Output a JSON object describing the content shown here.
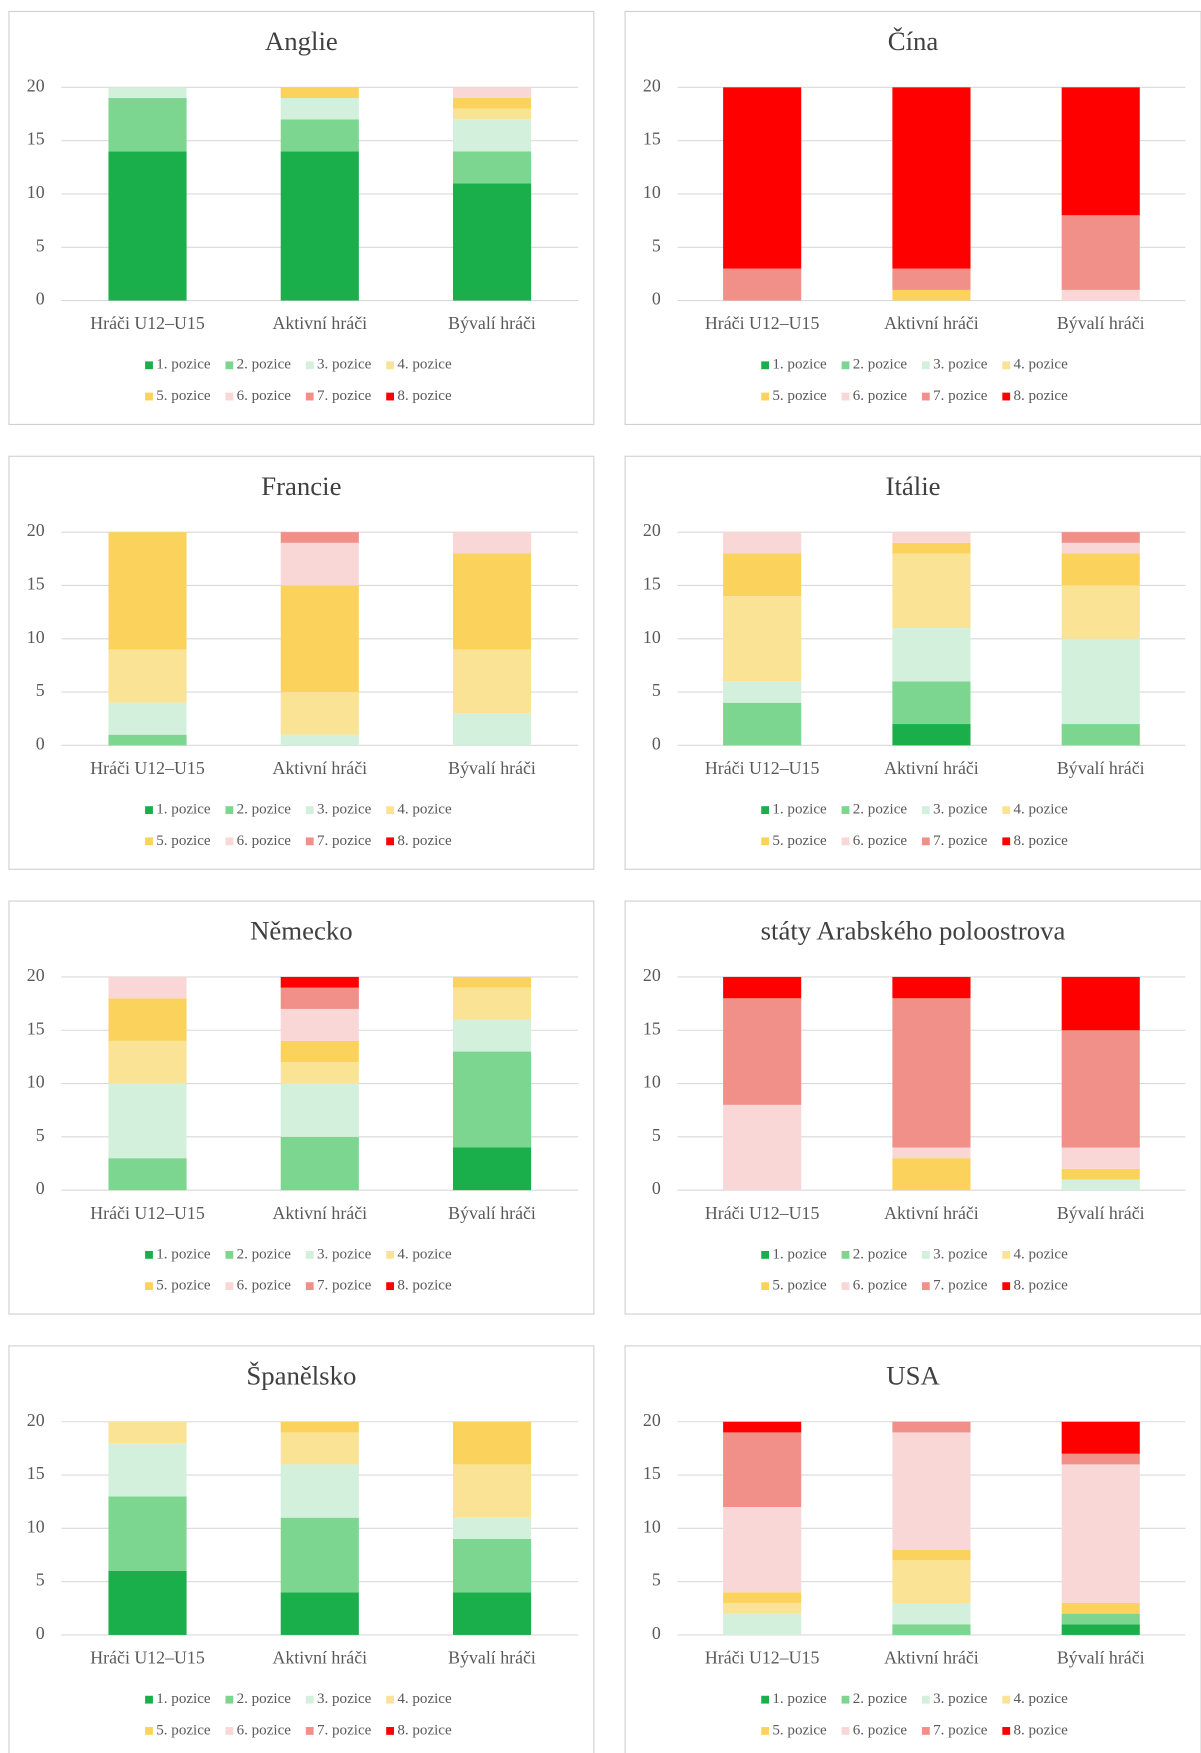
{
  "chart_data": [
    {
      "type": "bar",
      "stacked": true,
      "title": "Anglie",
      "categories": [
        "Hráči U12–U15",
        "Aktivní hráči",
        "Bývalí hráči"
      ],
      "ylim": [
        0,
        20
      ],
      "yticks": [
        0,
        5,
        10,
        15,
        20
      ],
      "grid": true,
      "legend": "bottom",
      "series": [
        {
          "name": "1. pozice",
          "color": "#1aaf4b",
          "values": [
            14,
            14,
            11
          ]
        },
        {
          "name": "2. pozice",
          "color": "#7dd68f",
          "values": [
            5,
            3,
            3
          ]
        },
        {
          "name": "3. pozice",
          "color": "#d3f0dc",
          "values": [
            1,
            2,
            3
          ]
        },
        {
          "name": "4. pozice",
          "color": "#fbe396",
          "values": [
            0,
            0,
            1
          ]
        },
        {
          "name": "5. pozice",
          "color": "#fbd35c",
          "values": [
            0,
            1,
            1
          ]
        },
        {
          "name": "6. pozice",
          "color": "#fad7d7",
          "values": [
            0,
            0,
            1
          ]
        },
        {
          "name": "7. pozice",
          "color": "#f09088",
          "values": [
            0,
            0,
            0
          ]
        },
        {
          "name": "8. pozice",
          "color": "#ff0000",
          "values": [
            0,
            0,
            0
          ]
        }
      ]
    },
    {
      "type": "bar",
      "stacked": true,
      "title": "Čína",
      "categories": [
        "Hráči U12–U15",
        "Aktivní hráči",
        "Bývalí hráči"
      ],
      "ylim": [
        0,
        20
      ],
      "yticks": [
        0,
        5,
        10,
        15,
        20
      ],
      "grid": true,
      "legend": "bottom",
      "series": [
        {
          "name": "1. pozice",
          "color": "#1aaf4b",
          "values": [
            0,
            0,
            0
          ]
        },
        {
          "name": "2. pozice",
          "color": "#7dd68f",
          "values": [
            0,
            0,
            0
          ]
        },
        {
          "name": "3. pozice",
          "color": "#d3f0dc",
          "values": [
            0,
            0,
            0
          ]
        },
        {
          "name": "4. pozice",
          "color": "#fbe396",
          "values": [
            0,
            0,
            0
          ]
        },
        {
          "name": "5. pozice",
          "color": "#fbd35c",
          "values": [
            0,
            1,
            0
          ]
        },
        {
          "name": "6. pozice",
          "color": "#fad7d7",
          "values": [
            0,
            0,
            1
          ]
        },
        {
          "name": "7. pozice",
          "color": "#f09088",
          "values": [
            3,
            2,
            7
          ]
        },
        {
          "name": "8. pozice",
          "color": "#ff0000",
          "values": [
            17,
            17,
            12
          ]
        }
      ]
    },
    {
      "type": "bar",
      "stacked": true,
      "title": "Francie",
      "categories": [
        "Hráči U12–U15",
        "Aktivní hráči",
        "Bývalí hráči"
      ],
      "ylim": [
        0,
        20
      ],
      "yticks": [
        0,
        5,
        10,
        15,
        20
      ],
      "grid": true,
      "legend": "bottom",
      "series": [
        {
          "name": "1. pozice",
          "color": "#1aaf4b",
          "values": [
            0,
            0,
            0
          ]
        },
        {
          "name": "2. pozice",
          "color": "#7dd68f",
          "values": [
            1,
            0,
            0
          ]
        },
        {
          "name": "3. pozice",
          "color": "#d3f0dc",
          "values": [
            3,
            1,
            3
          ]
        },
        {
          "name": "4. pozice",
          "color": "#fbe396",
          "values": [
            5,
            4,
            6
          ]
        },
        {
          "name": "5. pozice",
          "color": "#fbd35c",
          "values": [
            11,
            10,
            9
          ]
        },
        {
          "name": "6. pozice",
          "color": "#fad7d7",
          "values": [
            0,
            4,
            2
          ]
        },
        {
          "name": "7. pozice",
          "color": "#f09088",
          "values": [
            0,
            1,
            0
          ]
        },
        {
          "name": "8. pozice",
          "color": "#ff0000",
          "values": [
            0,
            0,
            0
          ]
        }
      ]
    },
    {
      "type": "bar",
      "stacked": true,
      "title": "Itálie",
      "categories": [
        "Hráči U12–U15",
        "Aktivní hráči",
        "Bývalí hráči"
      ],
      "ylim": [
        0,
        20
      ],
      "yticks": [
        0,
        5,
        10,
        15,
        20
      ],
      "grid": true,
      "legend": "bottom",
      "series": [
        {
          "name": "1. pozice",
          "color": "#1aaf4b",
          "values": [
            0,
            2,
            0
          ]
        },
        {
          "name": "2. pozice",
          "color": "#7dd68f",
          "values": [
            4,
            4,
            2
          ]
        },
        {
          "name": "3. pozice",
          "color": "#d3f0dc",
          "values": [
            2,
            5,
            8
          ]
        },
        {
          "name": "4. pozice",
          "color": "#fbe396",
          "values": [
            8,
            7,
            5
          ]
        },
        {
          "name": "5. pozice",
          "color": "#fbd35c",
          "values": [
            4,
            1,
            3
          ]
        },
        {
          "name": "6. pozice",
          "color": "#fad7d7",
          "values": [
            2,
            1,
            1
          ]
        },
        {
          "name": "7. pozice",
          "color": "#f09088",
          "values": [
            0,
            0,
            1
          ]
        },
        {
          "name": "8. pozice",
          "color": "#ff0000",
          "values": [
            0,
            0,
            0
          ]
        }
      ]
    },
    {
      "type": "bar",
      "stacked": true,
      "title": "Německo",
      "categories": [
        "Hráči U12–U15",
        "Aktivní hráči",
        "Bývalí hráči"
      ],
      "ylim": [
        0,
        20
      ],
      "yticks": [
        0,
        5,
        10,
        15,
        20
      ],
      "grid": true,
      "legend": "bottom",
      "series": [
        {
          "name": "1. pozice",
          "color": "#1aaf4b",
          "values": [
            0,
            0,
            4
          ]
        },
        {
          "name": "2. pozice",
          "color": "#7dd68f",
          "values": [
            3,
            5,
            9
          ]
        },
        {
          "name": "3. pozice",
          "color": "#d3f0dc",
          "values": [
            7,
            5,
            3
          ]
        },
        {
          "name": "4. pozice",
          "color": "#fbe396",
          "values": [
            4,
            2,
            3
          ]
        },
        {
          "name": "5. pozice",
          "color": "#fbd35c",
          "values": [
            4,
            2,
            1
          ]
        },
        {
          "name": "6. pozice",
          "color": "#fad7d7",
          "values": [
            2,
            3,
            0
          ]
        },
        {
          "name": "7. pozice",
          "color": "#f09088",
          "values": [
            0,
            2,
            0
          ]
        },
        {
          "name": "8. pozice",
          "color": "#ff0000",
          "values": [
            0,
            1,
            0
          ]
        }
      ]
    },
    {
      "type": "bar",
      "stacked": true,
      "title": "státy Arabského poloostrova",
      "categories": [
        "Hráči U12–U15",
        "Aktivní hráči",
        "Bývalí hráči"
      ],
      "ylim": [
        0,
        20
      ],
      "yticks": [
        0,
        5,
        10,
        15,
        20
      ],
      "grid": true,
      "legend": "bottom",
      "series": [
        {
          "name": "1. pozice",
          "color": "#1aaf4b",
          "values": [
            0,
            0,
            0
          ]
        },
        {
          "name": "2. pozice",
          "color": "#7dd68f",
          "values": [
            0,
            0,
            0
          ]
        },
        {
          "name": "3. pozice",
          "color": "#d3f0dc",
          "values": [
            0,
            0,
            1
          ]
        },
        {
          "name": "4. pozice",
          "color": "#fbe396",
          "values": [
            0,
            0,
            0
          ]
        },
        {
          "name": "5. pozice",
          "color": "#fbd35c",
          "values": [
            0,
            3,
            1
          ]
        },
        {
          "name": "6. pozice",
          "color": "#fad7d7",
          "values": [
            8,
            1,
            2
          ]
        },
        {
          "name": "7. pozice",
          "color": "#f09088",
          "values": [
            10,
            14,
            11
          ]
        },
        {
          "name": "8. pozice",
          "color": "#ff0000",
          "values": [
            2,
            2,
            5
          ]
        }
      ]
    },
    {
      "type": "bar",
      "stacked": true,
      "title": "Španělsko",
      "categories": [
        "Hráči U12–U15",
        "Aktivní hráči",
        "Bývalí hráči"
      ],
      "ylim": [
        0,
        20
      ],
      "yticks": [
        0,
        5,
        10,
        15,
        20
      ],
      "grid": true,
      "legend": "bottom",
      "series": [
        {
          "name": "1. pozice",
          "color": "#1aaf4b",
          "values": [
            6,
            4,
            4
          ]
        },
        {
          "name": "2. pozice",
          "color": "#7dd68f",
          "values": [
            7,
            7,
            5
          ]
        },
        {
          "name": "3. pozice",
          "color": "#d3f0dc",
          "values": [
            5,
            5,
            2
          ]
        },
        {
          "name": "4. pozice",
          "color": "#fbe396",
          "values": [
            2,
            3,
            5
          ]
        },
        {
          "name": "5. pozice",
          "color": "#fbd35c",
          "values": [
            0,
            1,
            4
          ]
        },
        {
          "name": "6. pozice",
          "color": "#fad7d7",
          "values": [
            0,
            0,
            0
          ]
        },
        {
          "name": "7. pozice",
          "color": "#f09088",
          "values": [
            0,
            0,
            0
          ]
        },
        {
          "name": "8. pozice",
          "color": "#ff0000",
          "values": [
            0,
            0,
            0
          ]
        }
      ]
    },
    {
      "type": "bar",
      "stacked": true,
      "title": "USA",
      "categories": [
        "Hráči U12–U15",
        "Aktivní hráči",
        "Bývalí hráči"
      ],
      "ylim": [
        0,
        20
      ],
      "yticks": [
        0,
        5,
        10,
        15,
        20
      ],
      "grid": true,
      "legend": "bottom",
      "series": [
        {
          "name": "1. pozice",
          "color": "#1aaf4b",
          "values": [
            0,
            0,
            1
          ]
        },
        {
          "name": "2. pozice",
          "color": "#7dd68f",
          "values": [
            0,
            1,
            1
          ]
        },
        {
          "name": "3. pozice",
          "color": "#d3f0dc",
          "values": [
            2,
            2,
            0
          ]
        },
        {
          "name": "4. pozice",
          "color": "#fbe396",
          "values": [
            1,
            4,
            0
          ]
        },
        {
          "name": "5. pozice",
          "color": "#fbd35c",
          "values": [
            1,
            1,
            1
          ]
        },
        {
          "name": "6. pozice",
          "color": "#fad7d7",
          "values": [
            8,
            11,
            13
          ]
        },
        {
          "name": "7. pozice",
          "color": "#f09088",
          "values": [
            7,
            1,
            1
          ]
        },
        {
          "name": "8. pozice",
          "color": "#ff0000",
          "values": [
            1,
            0,
            3
          ]
        }
      ]
    }
  ]
}
